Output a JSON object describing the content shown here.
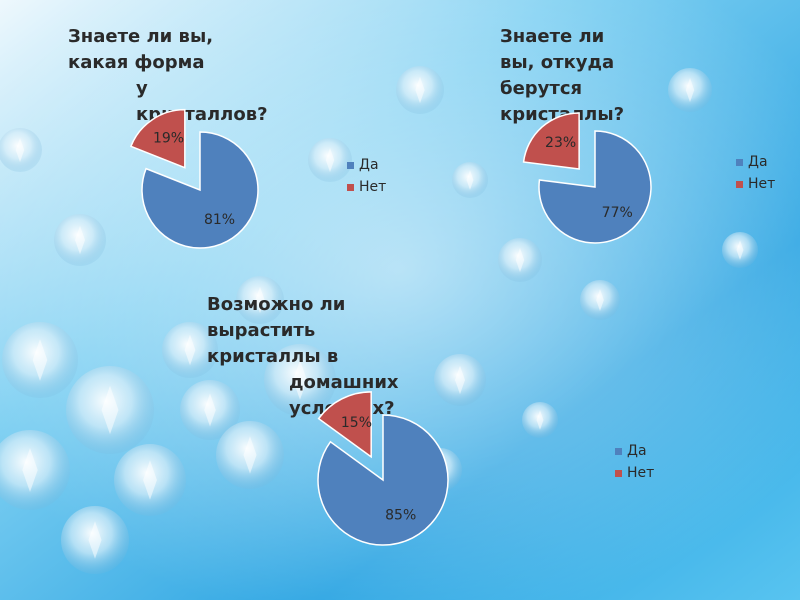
{
  "colors": {
    "yes": "#4f81bd",
    "no": "#c0504d"
  },
  "chart_data": [
    {
      "type": "pie",
      "title_lines": [
        "Знаете ли вы, какая форма",
        "у кристаллов?"
      ],
      "categories": [
        "Да",
        "Нет"
      ],
      "values": [
        81,
        19
      ],
      "labels": [
        "81%",
        "19%"
      ],
      "exploded": "Нет",
      "legend": "right"
    },
    {
      "type": "pie",
      "title_lines": [
        "Знаете ли вы, откуда",
        "берутся кристаллы?"
      ],
      "categories": [
        "Да",
        "Нет"
      ],
      "values": [
        77,
        23
      ],
      "labels": [
        "77%",
        "23%"
      ],
      "exploded": "Нет",
      "legend": "right"
    },
    {
      "type": "pie",
      "title_lines": [
        "Возможно ли вырастить кристаллы в",
        "домашних условиях?"
      ],
      "categories": [
        "Да",
        "Нет"
      ],
      "values": [
        85,
        15
      ],
      "labels": [
        "85%",
        "15%"
      ],
      "exploded": "Нет",
      "legend": "right"
    }
  ]
}
